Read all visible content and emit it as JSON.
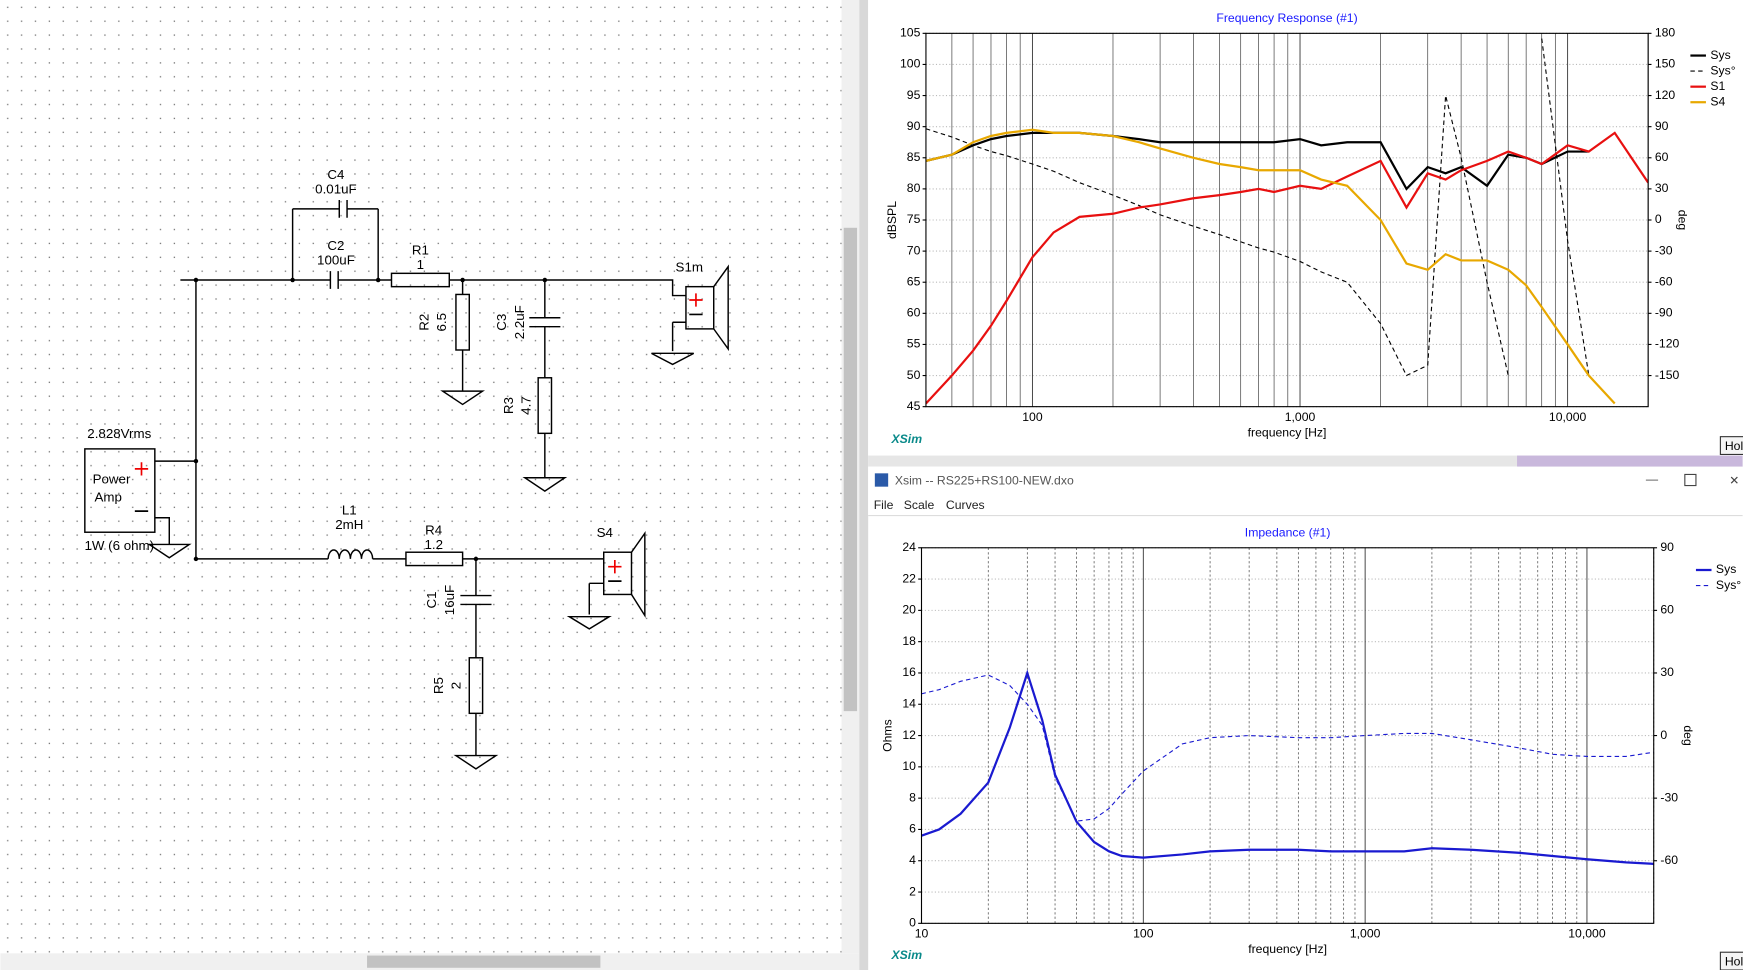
{
  "window": {
    "title": "Xsim -- RS225+RS100-NEW.dxo",
    "menu": [
      "File",
      "Scale",
      "Curves"
    ],
    "logo": "XSim",
    "button": "Hol"
  },
  "schematic": {
    "labels": [
      "C4",
      "0.01uF",
      "C2",
      "100uF",
      "R1",
      "1",
      "S1m",
      "R2",
      "6.5",
      "C3",
      "2.2uF",
      "R3",
      "4.7",
      "2.828Vrms",
      "Power",
      "Amp",
      "1W (6 ohm)",
      "L1",
      "2mH",
      "R4",
      "1.2",
      "S4",
      "C1",
      "16uF",
      "R5",
      "2"
    ]
  },
  "chart_data": [
    {
      "type": "line",
      "title": "Frequency Response (#1)",
      "x_label": "frequency [Hz]",
      "y_label": "dBSPL",
      "y2_label": "deg",
      "xscale": "log",
      "grid": true,
      "legend": "outside-right",
      "x": [
        40,
        50,
        60,
        70,
        80,
        100,
        120,
        150,
        200,
        250,
        300,
        400,
        500,
        600,
        700,
        800,
        1000,
        1200,
        1500,
        2000,
        2500,
        3000,
        3500,
        4000,
        5000,
        6000,
        7000,
        8000,
        10000,
        12000,
        15000,
        20000
      ],
      "xlim": [
        40,
        20000
      ],
      "xticks": [
        100,
        {
          "value": 1000,
          "label": "1,000"
        },
        {
          "value": 10000,
          "label": "10,000"
        }
      ],
      "x_minor_ticks": [
        40,
        50,
        60,
        70,
        80,
        90,
        200,
        300,
        400,
        500,
        600,
        700,
        800,
        900,
        2000,
        3000,
        4000,
        5000,
        6000,
        7000,
        8000,
        9000,
        20000
      ],
      "ylim": [
        45,
        105
      ],
      "yticks": [
        45,
        50,
        55,
        60,
        65,
        70,
        75,
        80,
        85,
        90,
        95,
        100,
        105
      ],
      "y2lim": [
        -180,
        180
      ],
      "y2ticks": [
        -150,
        -120,
        -90,
        -60,
        -30,
        0,
        30,
        60,
        90,
        120,
        150,
        180
      ],
      "series": [
        {
          "name": "Sys",
          "color": "#000000",
          "width": 2,
          "values": [
            84.5,
            85.5,
            87,
            88,
            88.5,
            89,
            89,
            89,
            88.5,
            88,
            87.5,
            87.5,
            87.5,
            87.5,
            87.5,
            87.5,
            88,
            87,
            87.5,
            87.5,
            80,
            83.5,
            82.5,
            83.5,
            80.5,
            85.5,
            85,
            84,
            86,
            86,
            null,
            null
          ]
        },
        {
          "name": "Sys°",
          "color": "#000000",
          "width": 1,
          "dash": "4 3",
          "axis": "y2",
          "values": [
            88,
            80,
            72,
            66,
            62,
            54,
            47,
            36,
            24,
            14,
            5,
            -6,
            -14,
            -21,
            -27,
            -31,
            -40,
            -50,
            -60,
            -100,
            -150,
            -140,
            120,
            60,
            -60,
            -150,
            null,
            175,
            -20,
            -150,
            null,
            null
          ]
        },
        {
          "name": "S1",
          "color": "#e81010",
          "width": 2,
          "values": [
            45.5,
            50,
            54,
            58,
            62,
            69,
            73,
            75.5,
            76,
            77,
            77.5,
            78.5,
            79,
            79.5,
            80,
            79.5,
            80.5,
            80,
            82,
            84.5,
            77,
            82.5,
            81.5,
            83,
            84.5,
            86,
            85,
            84,
            87,
            86,
            89,
            81
          ]
        },
        {
          "name": "S4",
          "color": "#e8a800",
          "width": 2,
          "values": [
            84.5,
            85.5,
            87.5,
            88.5,
            89,
            89.5,
            89,
            89,
            88.5,
            87.5,
            86.5,
            85,
            84,
            83.5,
            83,
            83,
            83,
            81.5,
            80.5,
            75,
            68,
            67,
            69.5,
            68.5,
            68.5,
            67,
            64.5,
            61,
            55,
            50,
            45.5,
            null
          ]
        }
      ]
    },
    {
      "type": "line",
      "title": "Impedance (#1)",
      "x_label": "frequency [Hz]",
      "y_label": "Ohms",
      "y2_label": "deg",
      "xscale": "log",
      "grid": true,
      "legend": "outside-right",
      "x": [
        10,
        12,
        15,
        20,
        25,
        30,
        35,
        40,
        50,
        60,
        70,
        80,
        100,
        150,
        200,
        300,
        500,
        700,
        1000,
        1500,
        2000,
        3000,
        5000,
        7000,
        10000,
        15000,
        20000
      ],
      "xlim": [
        10,
        20000
      ],
      "xticks": [
        10,
        100,
        {
          "value": 1000,
          "label": "1,000"
        },
        {
          "value": 10000,
          "label": "10,000"
        }
      ],
      "x_minor_ticks": [
        20,
        30,
        40,
        50,
        60,
        70,
        80,
        90,
        200,
        300,
        400,
        500,
        600,
        700,
        800,
        900,
        2000,
        3000,
        4000,
        5000,
        6000,
        7000,
        8000,
        9000,
        20000
      ],
      "ylim": [
        0,
        24
      ],
      "yticks": [
        0,
        2,
        4,
        6,
        8,
        10,
        12,
        14,
        16,
        18,
        20,
        22,
        24
      ],
      "y2lim": [
        -90,
        90
      ],
      "y2ticks": [
        -60,
        -30,
        0,
        30,
        60,
        90
      ],
      "series": [
        {
          "name": "Sys",
          "color": "#1a1ad0",
          "width": 2,
          "values": [
            5.6,
            6,
            7,
            9,
            12.5,
            16,
            13,
            9.5,
            6.5,
            5.2,
            4.6,
            4.3,
            4.2,
            4.4,
            4.6,
            4.7,
            4.7,
            4.6,
            4.6,
            4.6,
            4.8,
            4.7,
            4.5,
            4.3,
            4.1,
            3.9,
            3.8
          ]
        },
        {
          "name": "Sys°",
          "color": "#1a1ad0",
          "width": 1,
          "dash": "4 3",
          "axis": "y2",
          "values": [
            20,
            22,
            26,
            29,
            24,
            15,
            5,
            -20,
            -41,
            -40,
            -35,
            -28,
            -17,
            -4,
            -1,
            0,
            -1,
            -1,
            0,
            1,
            1,
            -2,
            -6,
            -9,
            -10,
            -10,
            -8
          ]
        }
      ]
    }
  ]
}
